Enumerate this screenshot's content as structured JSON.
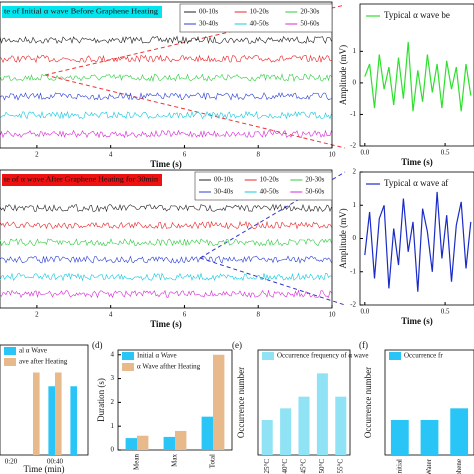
{
  "chart_data": [
    {
      "type": "eeg",
      "title": "te of Initial α wave Before Graphene Heating",
      "title_bg": "#00e5ee",
      "series": [
        {
          "name": "00-10s",
          "color": "#222222"
        },
        {
          "name": "10-20s",
          "color": "#e8262a"
        },
        {
          "name": "20-30s",
          "color": "#2ecc40"
        },
        {
          "name": "30-40s",
          "color": "#2b3fd6"
        },
        {
          "name": "40-50s",
          "color": "#14c8e0"
        },
        {
          "name": "50-60s",
          "color": "#d62ad6"
        }
      ],
      "xlim": [
        1,
        10
      ],
      "xticks": [
        2,
        4,
        6,
        8,
        10
      ],
      "xlabel": "Time (s)"
    },
    {
      "type": "line",
      "legend": "Typical α wave be",
      "color": "#2ee02e",
      "ylabel": "Amplitude (mV)",
      "xlabel": "Time (s)",
      "x": [
        0,
        0.03,
        0.06,
        0.09,
        0.12,
        0.15,
        0.18,
        0.21,
        0.24,
        0.27,
        0.3,
        0.33,
        0.36,
        0.39,
        0.42,
        0.45,
        0.48,
        0.51,
        0.54,
        0.57,
        0.6,
        0.63,
        0.66
      ],
      "values": [
        0.2,
        0.6,
        -0.8,
        0.9,
        -0.2,
        0.5,
        -0.7,
        0.8,
        -0.5,
        1.3,
        -0.9,
        0.4,
        -0.6,
        0.9,
        -0.3,
        0.6,
        -0.8,
        0.7,
        -0.2,
        0.5,
        -0.9,
        0.6,
        -0.4
      ],
      "xlim": [
        -0.03,
        0.68
      ],
      "xticks": [
        {
          "value": 0,
          "label": "0.0"
        },
        0.5
      ],
      "ylim": [
        -2,
        2.5
      ],
      "yticks": [
        1,
        0,
        -1,
        -2
      ]
    },
    {
      "type": "eeg",
      "title": "te of α wave After Graphene Heating for 30min",
      "title_bg": "#ee1111",
      "series": [
        {
          "name": "00-10s",
          "color": "#222222"
        },
        {
          "name": "10-20s",
          "color": "#e8262a"
        },
        {
          "name": "20-30s",
          "color": "#2ecc40"
        },
        {
          "name": "30-40s",
          "color": "#2b3fd6"
        },
        {
          "name": "40-50s",
          "color": "#14c8e0"
        },
        {
          "name": "50-60s",
          "color": "#d62ad6"
        }
      ],
      "xlim": [
        1,
        10
      ],
      "xticks": [
        2,
        4,
        6,
        8,
        10
      ],
      "xlabel": "Time (s)"
    },
    {
      "type": "line",
      "legend": "Typical α wave af",
      "color": "#1a2bc8",
      "ylabel": "Amplitude (mV)",
      "xlabel": "Time (s)",
      "x": [
        0,
        0.03,
        0.06,
        0.09,
        0.12,
        0.15,
        0.18,
        0.21,
        0.24,
        0.27,
        0.3,
        0.33,
        0.36,
        0.39,
        0.42,
        0.45,
        0.48,
        0.51,
        0.54,
        0.57,
        0.6,
        0.63,
        0.66
      ],
      "values": [
        -0.5,
        0.8,
        -1.2,
        0.6,
        1.0,
        -1.5,
        0.3,
        -0.8,
        1.2,
        -0.4,
        0.5,
        -1.6,
        0.9,
        0.2,
        -1.0,
        1.4,
        -0.6,
        0.7,
        -1.3,
        0.4,
        1.1,
        -0.9,
        0.5
      ],
      "xlim": [
        -0.03,
        0.68
      ],
      "xticks": [
        {
          "value": 0,
          "label": "0.0"
        },
        0.5
      ],
      "ylim": [
        -2,
        2
      ],
      "yticks": [
        2,
        1,
        0,
        -1,
        -2
      ]
    },
    {
      "type": "bar",
      "xlabel": "Time (min)",
      "categories": [
        "0:20",
        null,
        "00:40",
        null
      ],
      "ylim": [
        0,
        4
      ],
      "series": [
        {
          "name": "al α Wave",
          "color": "#29c5f6",
          "values": [
            0,
            0,
            2.5,
            2.5
          ]
        },
        {
          "name": "ave after Heating",
          "color": "#e8b98a",
          "values": [
            0,
            3,
            3,
            0
          ]
        }
      ]
    },
    {
      "type": "bar",
      "label": "(d)",
      "ylabel": "Duration (s)",
      "categories": [
        "Mean",
        "Max",
        "Total"
      ],
      "rotate": true,
      "ylim": [
        0,
        4.2
      ],
      "yticks": [
        0,
        1,
        2,
        3,
        4
      ],
      "series": [
        {
          "name": "Initial α Wave",
          "color": "#29c5f6",
          "values": [
            0.5,
            0.55,
            1.4
          ]
        },
        {
          "name": "α Wave afther Heating",
          "color": "#e8b98a",
          "values": [
            0.6,
            0.8,
            4.0
          ]
        }
      ]
    },
    {
      "type": "bar",
      "label": "(e)",
      "ylabel": "Occurrence number",
      "categories": [
        "25°C",
        "40°C",
        "45°C",
        "50°C",
        "55°C"
      ],
      "rotate": true,
      "ylim": [
        0,
        9
      ],
      "series": [
        {
          "name": "Occurrence frequency of α wave",
          "color": "#8fe3f5",
          "values": [
            3,
            4,
            5,
            7,
            5
          ]
        }
      ]
    },
    {
      "type": "bar",
      "label": "(f)",
      "ylabel": "Occurrence number",
      "categories": [
        "Initial",
        "Water",
        "Graphene"
      ],
      "rotate": true,
      "ylim": [
        0,
        9
      ],
      "series": [
        {
          "name": "Occurrence fr",
          "color": "#29c5f6",
          "values": [
            3,
            3,
            4
          ]
        }
      ]
    }
  ]
}
